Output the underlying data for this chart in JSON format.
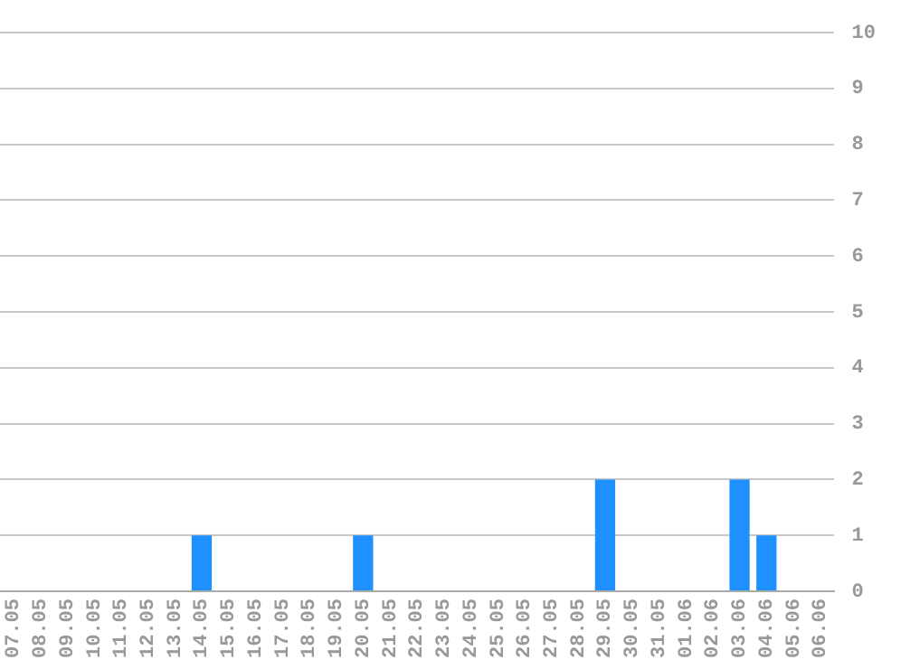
{
  "chart_data": {
    "type": "bar",
    "categories": [
      "07.05",
      "08.05",
      "09.05",
      "10.05",
      "11.05",
      "12.05",
      "13.05",
      "14.05",
      "15.05",
      "16.05",
      "17.05",
      "18.05",
      "19.05",
      "20.05",
      "21.05",
      "22.05",
      "23.05",
      "24.05",
      "25.05",
      "26.05",
      "27.05",
      "28.05",
      "29.05",
      "30.05",
      "31.05",
      "01.06",
      "02.06",
      "03.06",
      "04.06",
      "05.06",
      "06.06"
    ],
    "values": [
      0,
      0,
      0,
      0,
      0,
      0,
      0,
      1,
      0,
      0,
      0,
      0,
      0,
      1,
      0,
      0,
      0,
      0,
      0,
      0,
      0,
      0,
      2,
      0,
      0,
      0,
      0,
      2,
      1,
      0,
      0
    ],
    "color": "#1e90ff",
    "ylim": [
      0,
      10
    ],
    "yticks": [
      0,
      1,
      2,
      3,
      4,
      5,
      6,
      7,
      8,
      9,
      10
    ],
    "grid": "y",
    "legend": false
  }
}
